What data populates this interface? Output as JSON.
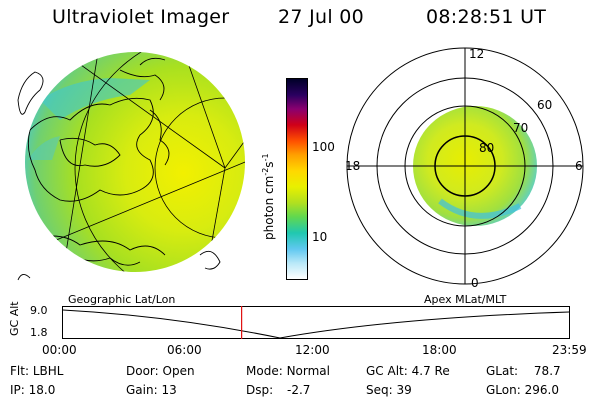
{
  "header": {
    "title": "Ultraviolet Imager",
    "date": "27 Jul 00",
    "time": "08:28:51 UT"
  },
  "colorbar": {
    "unit": "photon cm",
    "unit_sup1": "-2",
    "unit_mid": "s",
    "unit_sup2": "-1",
    "tick_high": "100",
    "tick_low": "10",
    "colors": [
      "#000028",
      "#2a0060",
      "#8a0070",
      "#d00018",
      "#ff5000",
      "#ffa000",
      "#ffd800",
      "#e8f000",
      "#b0e020",
      "#60d850",
      "#20c8b0",
      "#60c8f0",
      "#b8e8f8",
      "#ffffff"
    ]
  },
  "polar": {
    "mlt_top": "12",
    "mlt_left": "18",
    "mlt_right": "6",
    "mlt_bottom": "0",
    "lat_60": "60",
    "lat_70": "70",
    "lat_80": "80"
  },
  "timeline": {
    "left_title": "Geographic Lat/Lon",
    "right_title": "Apex MLat/MLT",
    "y_axis_label": "GC Alt",
    "y_top": "9.0",
    "y_bottom": "1.8",
    "x_ticks": [
      "00:00",
      "06:00",
      "12:00",
      "18:00",
      "23:59"
    ],
    "current_time_fraction": 0.353
  },
  "info": {
    "flt_label": "Flt:",
    "flt_value": "LBHL",
    "ip_label": "IP:",
    "ip_value": "18.0",
    "door_label": "Door:",
    "door_value": "Open",
    "gain_label": "Gain:",
    "gain_value": "13",
    "mode_label": "Mode:",
    "mode_value": "Normal",
    "dsp_label": "Dsp:",
    "dsp_value": "-2.7",
    "gcalt_label": "GC Alt:",
    "gcalt_value": "4.7 Re",
    "seq_label": "Seq:",
    "seq_value": "39",
    "glat_label": "GLat:",
    "glat_value": "78.7",
    "glon_label": "GLon:",
    "glon_value": "296.0"
  }
}
